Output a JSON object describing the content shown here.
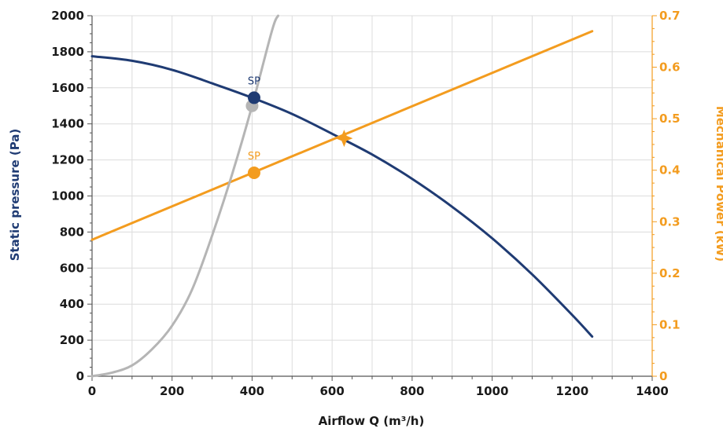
{
  "colors": {
    "navy": "#1f3b73",
    "orange": "#f39c1f",
    "gray": "#b5b5b5",
    "grid": "#dcdcdc",
    "axis": "#555555"
  },
  "chart_data": {
    "type": "line",
    "xlabel": "Airflow Q (m³/h)",
    "ylabel": "Static pressure (Pa)",
    "y2label": "Mechanical Power (kW)",
    "xlim": [
      0,
      1400
    ],
    "ylim": [
      0,
      2000
    ],
    "y2lim": [
      0,
      0.7
    ],
    "x_ticks": [
      "0",
      "200",
      "400",
      "600",
      "800",
      "1000",
      "1200",
      "1400"
    ],
    "y_ticks": [
      "0",
      "200",
      "400",
      "600",
      "800",
      "1000",
      "1200",
      "1400",
      "1600",
      "1800",
      "2000"
    ],
    "y2_ticks": [
      "0",
      "0.1",
      "0.2",
      "0.3",
      "0.4",
      "0.5",
      "0.6",
      "0.7"
    ],
    "grid": true,
    "series": [
      {
        "axis": "left",
        "color": "#1f3b73",
        "x": [
          0,
          100,
          200,
          300,
          400,
          500,
          600,
          700,
          800,
          900,
          1000,
          1100,
          1200,
          1250
        ],
        "y": [
          1775,
          1750,
          1700,
          1625,
          1545,
          1455,
          1345,
          1230,
          1095,
          940,
          765,
          565,
          340,
          220
        ]
      },
      {
        "axis": "right",
        "color": "#f39c1f",
        "x": [
          0,
          1250
        ],
        "y": [
          0.265,
          0.67
        ]
      },
      {
        "axis": "left",
        "color": "#b5b5b5",
        "x": [
          0,
          50,
          100,
          150,
          200,
          250,
          300,
          350,
          400,
          450,
          465
        ],
        "y": [
          0,
          20,
          60,
          150,
          280,
          480,
          780,
          1120,
          1500,
          1920,
          2000
        ]
      }
    ],
    "markers": [
      {
        "shape": "circle",
        "axis": "left",
        "x": 400,
        "y": 1500,
        "color": "#b5b5b5"
      },
      {
        "shape": "circle",
        "axis": "left",
        "x": 405,
        "y": 1545,
        "color": "#1f3b73",
        "label": "SP"
      },
      {
        "shape": "circle",
        "axis": "right",
        "x": 405,
        "y": 0.395,
        "color": "#f39c1f",
        "label": "SP"
      },
      {
        "shape": "star",
        "axis": "right",
        "x": 630,
        "y": 0.462,
        "color": "#f39c1f"
      }
    ]
  }
}
